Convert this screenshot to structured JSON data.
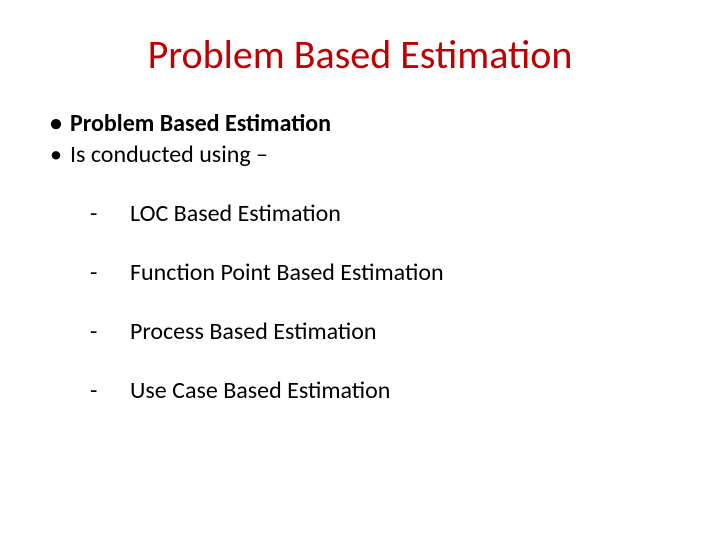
{
  "slide": {
    "title": "Problem Based Estimation",
    "title_color": "#c00000",
    "title_fontsize": 40,
    "background_color": "#ffffff",
    "text_color": "#000000",
    "body_fontsize": 24,
    "bullets": [
      {
        "text": "Problem Based Estimation",
        "bold": true
      },
      {
        "text": "Is conducted using –",
        "bold": false
      }
    ],
    "sub_items": [
      {
        "marker": "-",
        "text": "LOC Based Estimation"
      },
      {
        "marker": "-",
        "text": "Function Point Based Estimation"
      },
      {
        "marker": "-",
        "text": "Process Based Estimation"
      },
      {
        "marker": "-",
        "text": "Use Case Based Estimation"
      }
    ]
  }
}
